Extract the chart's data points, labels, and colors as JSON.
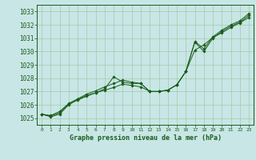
{
  "title": "Graphe pression niveau de la mer (hPa)",
  "background_color": "#c8e6e6",
  "grid_color": "#a8c8a8",
  "line_color": "#1a5c1a",
  "marker_color": "#1a5c1a",
  "xlim": [
    -0.5,
    23.5
  ],
  "ylim": [
    1024.5,
    1033.5
  ],
  "yticks": [
    1025,
    1026,
    1027,
    1028,
    1029,
    1030,
    1031,
    1032,
    1033
  ],
  "xticks": [
    0,
    1,
    2,
    3,
    4,
    5,
    6,
    7,
    8,
    9,
    10,
    11,
    12,
    13,
    14,
    15,
    16,
    17,
    18,
    19,
    20,
    21,
    22,
    23
  ],
  "series1_x": [
    0,
    1,
    2,
    3,
    4,
    5,
    6,
    7,
    8,
    9,
    10,
    11,
    12,
    13,
    14,
    15,
    16,
    17,
    18,
    19,
    20,
    21,
    22,
    23
  ],
  "series1_y": [
    1025.3,
    1025.1,
    1025.3,
    1026.0,
    1026.4,
    1026.7,
    1026.9,
    1027.2,
    1028.1,
    1027.7,
    1027.6,
    1027.6,
    1027.0,
    1027.0,
    1027.1,
    1027.5,
    1028.5,
    1030.7,
    1030.0,
    1031.0,
    1031.5,
    1031.9,
    1032.2,
    1032.7
  ],
  "series2_x": [
    0,
    1,
    2,
    3,
    4,
    5,
    6,
    7,
    8,
    9,
    10,
    11,
    12,
    13,
    14,
    15,
    16,
    17,
    18,
    19,
    20,
    21,
    22,
    23
  ],
  "series2_y": [
    1025.3,
    1025.2,
    1025.5,
    1026.1,
    1026.45,
    1026.8,
    1027.05,
    1027.35,
    1027.6,
    1027.85,
    1027.7,
    1027.6,
    1027.0,
    1027.0,
    1027.1,
    1027.5,
    1028.5,
    1030.75,
    1030.2,
    1031.1,
    1031.6,
    1032.0,
    1032.3,
    1032.85
  ],
  "series3_x": [
    0,
    1,
    2,
    3,
    4,
    5,
    6,
    7,
    8,
    9,
    10,
    11,
    12,
    13,
    14,
    15,
    16,
    17,
    18,
    19,
    20,
    21,
    22,
    23
  ],
  "series3_y": [
    1025.3,
    1025.15,
    1025.4,
    1026.05,
    1026.35,
    1026.65,
    1026.9,
    1027.1,
    1027.3,
    1027.55,
    1027.45,
    1027.35,
    1027.0,
    1027.0,
    1027.1,
    1027.5,
    1028.5,
    1030.1,
    1030.5,
    1031.05,
    1031.4,
    1031.8,
    1032.15,
    1032.55
  ],
  "ytick_fontsize": 5.5,
  "xtick_fontsize": 4.5,
  "xlabel_fontsize": 6.0,
  "linewidth": 0.7,
  "markersize": 1.8
}
